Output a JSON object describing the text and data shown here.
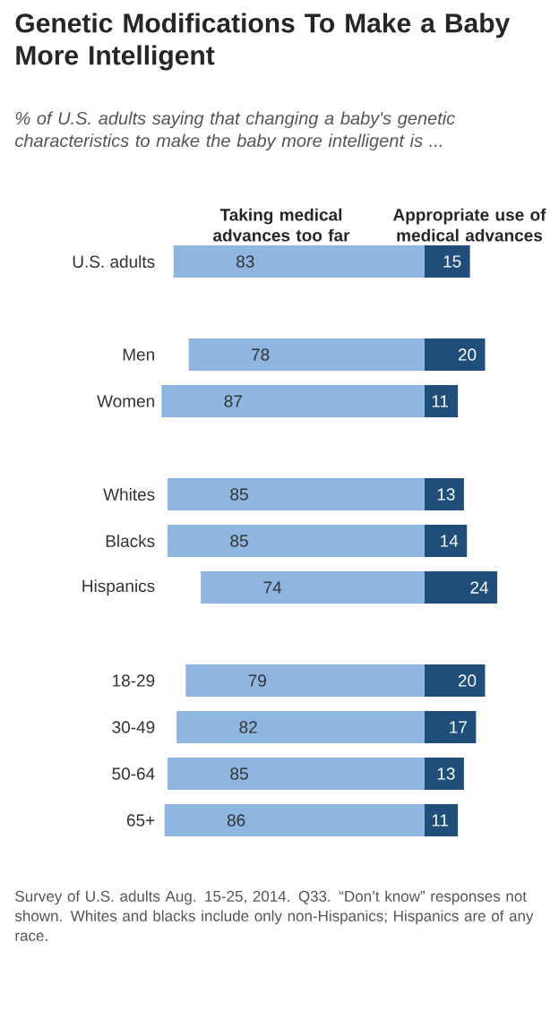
{
  "chart_data": [
    {
      "type": "bar",
      "orientation": "horizontal",
      "title": "Genetic Modifications To Make a Baby More Intelligent",
      "subtitle": "% of U.S. adults saying that changing a baby's genetic characteristics to make the baby more intelligent is ...",
      "categories": [
        "U.S. adults",
        null,
        "Men",
        "Women",
        null,
        "Whites",
        "Blacks",
        "Hispanics",
        null,
        "18-29",
        "30-49",
        "50-64",
        "65+"
      ],
      "series": [
        {
          "name": "Taking medical advances too far",
          "color": "#8fb6e1",
          "values": [
            83,
            null,
            78,
            87,
            null,
            85,
            85,
            74,
            null,
            79,
            82,
            85,
            86
          ]
        }
      ],
      "tick_labels": "y",
      "data_labels": true,
      "annotations": [
        "Survey of U.S. adults Aug. 15-25, 2014. Q33. “Don’t know” responses not shown. Whites and blacks include only non-Hispanics; Hispanics are of any race."
      ]
    },
    {
      "type": "bar",
      "orientation": "horizontal",
      "categories": [
        null,
        null,
        null,
        null,
        null,
        null,
        null,
        null,
        null,
        null,
        null,
        null,
        null
      ],
      "series": [
        {
          "name": "Appropriate use of medical advances",
          "color": "#1f4e7a",
          "values": [
            15,
            null,
            20,
            11,
            null,
            13,
            14,
            24,
            null,
            20,
            17,
            13,
            11
          ]
        }
      ],
      "tick_labels": false,
      "data_labels": true
    }
  ]
}
